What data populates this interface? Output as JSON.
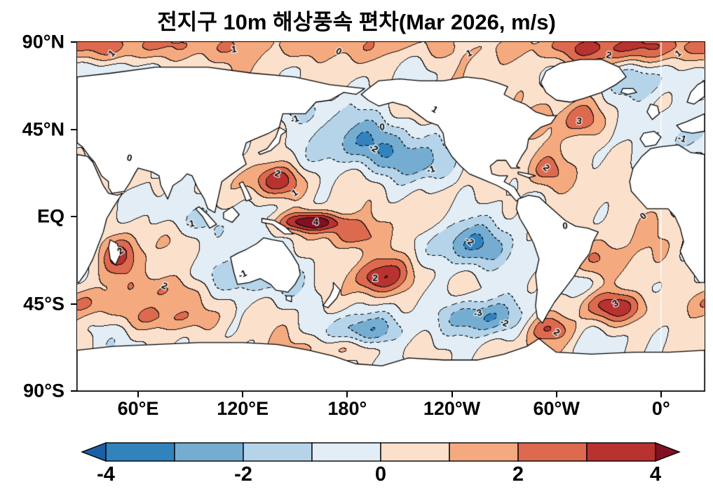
{
  "title": "전지구 10m 해상풍속 편차(Mar 2026, m/s)",
  "chart_data": {
    "type": "heatmap",
    "subtype": "filled-contour-map",
    "title": "전지구 10m 해상풍속 편차(Mar 2026, m/s)",
    "variable": "10m ocean wind speed anomaly",
    "units": "m/s",
    "projection": "equirectangular",
    "lon_range_deg_east": [
      25,
      385
    ],
    "lat_range": [
      -90,
      90
    ],
    "grid": false,
    "x_tick_labels": [
      "60°E",
      "120°E",
      "180°",
      "120°W",
      "60°W",
      "0°"
    ],
    "x_tick_lons": [
      60,
      120,
      180,
      240,
      300,
      360
    ],
    "y_tick_labels": [
      "90°N",
      "45°N",
      "EQ",
      "45°S",
      "90°S"
    ],
    "y_tick_lats": [
      90,
      45,
      0,
      -45,
      -90
    ],
    "contour_interval": 1,
    "negative_contours_dashed": true,
    "colorbar": {
      "orientation": "horizontal",
      "extend": "both",
      "tick_labels": [
        "-4",
        "-2",
        "0",
        "2",
        "4"
      ],
      "tick_values": [
        -4,
        -2,
        0,
        2,
        4
      ],
      "levels": [
        -4,
        -3,
        -2,
        -1,
        0,
        1,
        2,
        3,
        4
      ],
      "colors": [
        "#1b5fa6",
        "#3182bd",
        "#74add1",
        "#b5d4e9",
        "#e2edf5",
        "#fbe0cc",
        "#f5a97e",
        "#dd6a4f",
        "#b83230",
        "#7f1123"
      ]
    },
    "anomaly_centers": [
      {
        "lon": 60,
        "lat": 88,
        "amp": 1.6,
        "sx": 50,
        "sy": 6
      },
      {
        "lon": 180,
        "lat": 88,
        "amp": 1.2,
        "sx": 60,
        "sy": 6
      },
      {
        "lon": 330,
        "lat": 87,
        "amp": 2.6,
        "sx": 35,
        "sy": 6
      },
      {
        "lon": 40,
        "lat": 75,
        "amp": -1.6,
        "sx": 12,
        "sy": 5
      },
      {
        "lon": 150,
        "lat": 55,
        "amp": -1.8,
        "sx": 14,
        "sy": 6
      },
      {
        "lon": 235,
        "lat": 58,
        "amp": 1.6,
        "sx": 16,
        "sy": 6
      },
      {
        "lon": 190,
        "lat": 37,
        "amp": -2.6,
        "sx": 26,
        "sy": 9
      },
      {
        "lon": 222,
        "lat": 27,
        "amp": -2.0,
        "sx": 14,
        "sy": 7
      },
      {
        "lon": 140,
        "lat": 18,
        "amp": 3.8,
        "sx": 11,
        "sy": 6
      },
      {
        "lon": 160,
        "lat": -3,
        "amp": 4.6,
        "sx": 14,
        "sy": 3.5
      },
      {
        "lon": 183,
        "lat": -10,
        "amp": 2.6,
        "sx": 10,
        "sy": 5
      },
      {
        "lon": 205,
        "lat": -30,
        "amp": 2.6,
        "sx": 12,
        "sy": 7
      },
      {
        "lon": 194,
        "lat": -33,
        "amp": 1.5,
        "sx": 8,
        "sy": 5
      },
      {
        "lon": 248,
        "lat": -15,
        "amp": -2.6,
        "sx": 20,
        "sy": 8
      },
      {
        "lon": 258,
        "lat": -52,
        "amp": -3.6,
        "sx": 16,
        "sy": 7
      },
      {
        "lon": 190,
        "lat": -58,
        "amp": -2.4,
        "sx": 18,
        "sy": 6
      },
      {
        "lon": 335,
        "lat": -47,
        "amp": 3.4,
        "sx": 14,
        "sy": 6
      },
      {
        "lon": 315,
        "lat": 50,
        "amp": 3.4,
        "sx": 9,
        "sy": 7
      },
      {
        "lon": 294,
        "lat": 23,
        "amp": 2.4,
        "sx": 10,
        "sy": 7
      },
      {
        "lon": 345,
        "lat": 70,
        "amp": -1.6,
        "sx": 14,
        "sy": 6
      },
      {
        "lon": 372,
        "lat": 42,
        "amp": -1.7,
        "sx": 12,
        "sy": 8
      },
      {
        "lon": 87,
        "lat": -2,
        "amp": -1.4,
        "sx": 16,
        "sy": 6
      },
      {
        "lon": 62,
        "lat": 8,
        "amp": -1.1,
        "sx": 10,
        "sy": 5
      },
      {
        "lon": 50,
        "lat": -20,
        "amp": 2.8,
        "sx": 8,
        "sy": 7
      },
      {
        "lon": 75,
        "lat": -38,
        "amp": 2.4,
        "sx": 14,
        "sy": 6
      },
      {
        "lon": 120,
        "lat": -32,
        "amp": -2.0,
        "sx": 22,
        "sy": 7
      },
      {
        "lon": 75,
        "lat": -52,
        "amp": 2.2,
        "sx": 18,
        "sy": 5
      },
      {
        "lon": 30,
        "lat": -45,
        "amp": 2.0,
        "sx": 10,
        "sy": 5
      },
      {
        "lon": 327,
        "lat": -22,
        "amp": 1.5,
        "sx": 12,
        "sy": 7
      },
      {
        "lon": 318,
        "lat": -35,
        "amp": -1.3,
        "sx": 10,
        "sy": 5
      },
      {
        "lon": 297,
        "lat": -58,
        "amp": 2.4,
        "sx": 10,
        "sy": 5
      },
      {
        "lon": 180,
        "lat": -68,
        "amp": 1.5,
        "sx": 16,
        "sy": 4
      }
    ],
    "contour_labels": [
      {
        "lon": 45,
        "lat": 84,
        "text": "1"
      },
      {
        "lon": 115,
        "lat": 86,
        "text": "1"
      },
      {
        "lon": 175,
        "lat": 85,
        "text": "0"
      },
      {
        "lon": 250,
        "lat": 84,
        "text": "1"
      },
      {
        "lon": 330,
        "lat": 83,
        "text": "2"
      },
      {
        "lon": 370,
        "lat": 84,
        "text": "1"
      },
      {
        "lon": 200,
        "lat": 46,
        "text": "0"
      },
      {
        "lon": 195,
        "lat": 35,
        "text": "-2"
      },
      {
        "lon": 228,
        "lat": 24,
        "text": "-1"
      },
      {
        "lon": 140,
        "lat": 22,
        "text": "2"
      },
      {
        "lon": 150,
        "lat": 12,
        "text": "1"
      },
      {
        "lon": 162,
        "lat": -3,
        "text": "4"
      },
      {
        "lon": 250,
        "lat": -13,
        "text": "-2"
      },
      {
        "lon": 255,
        "lat": -50,
        "text": "-3"
      },
      {
        "lon": 270,
        "lat": -55,
        "text": "-2"
      },
      {
        "lon": 334,
        "lat": -45,
        "text": "3"
      },
      {
        "lon": 313,
        "lat": 49,
        "text": "3"
      },
      {
        "lon": 294,
        "lat": 25,
        "text": "2"
      },
      {
        "lon": 90,
        "lat": -4,
        "text": "-1"
      },
      {
        "lon": 75,
        "lat": -36,
        "text": "2"
      },
      {
        "lon": 120,
        "lat": -30,
        "text": "-1"
      },
      {
        "lon": 55,
        "lat": 30,
        "text": "0"
      },
      {
        "lon": 350,
        "lat": 0,
        "text": "0"
      },
      {
        "lon": 305,
        "lat": -5,
        "text": "0"
      },
      {
        "lon": 230,
        "lat": 55,
        "text": "1"
      },
      {
        "lon": 150,
        "lat": 50,
        "text": "-1"
      },
      {
        "lon": 372,
        "lat": 40,
        "text": "-1"
      },
      {
        "lon": 50,
        "lat": -18,
        "text": "2"
      },
      {
        "lon": 196,
        "lat": -32,
        "text": "2"
      },
      {
        "lon": 300,
        "lat": -60,
        "text": "2"
      }
    ]
  }
}
